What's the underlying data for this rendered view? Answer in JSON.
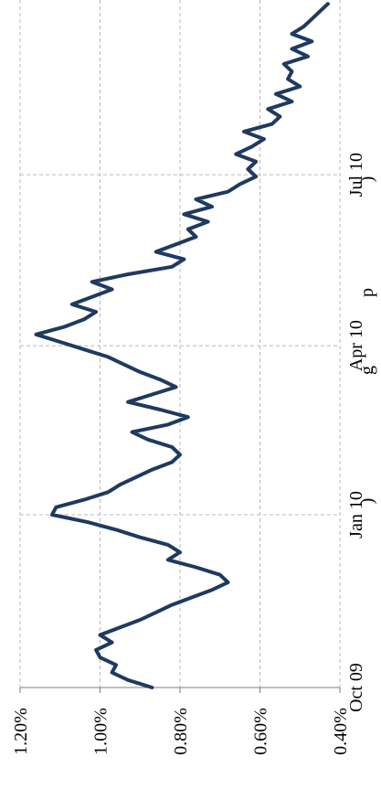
{
  "chart_data": {
    "type": "line",
    "title": "",
    "title_visible_fragments": [
      ")",
      "g",
      "p",
      ")"
    ],
    "xlabel": "",
    "ylabel": "",
    "x_ticks": [
      "Oct 09",
      "Jan 10",
      "Apr 10",
      "Jul 10"
    ],
    "y_ticks": [
      "0.40%",
      "0.60%",
      "0.80%",
      "1.00%",
      "1.20%"
    ],
    "ylim": [
      0.004,
      0.012
    ],
    "grid": true,
    "colors": {
      "line": "#1f3a5f",
      "grid": "#b8b8b8",
      "axis": "#7f7f7f"
    },
    "series": [
      {
        "x": [
          "2009-10-01",
          "2009-10-05",
          "2009-10-09",
          "2009-10-13",
          "2009-10-17",
          "2009-10-21",
          "2009-10-25",
          "2009-10-29",
          "2009-11-02",
          "2009-11-06",
          "2009-11-10",
          "2009-11-14",
          "2009-11-18",
          "2009-11-22",
          "2009-11-26",
          "2009-11-30",
          "2009-12-04",
          "2009-12-08",
          "2009-12-12",
          "2009-12-16",
          "2009-12-20",
          "2009-12-24",
          "2009-12-28",
          "2010-01-01",
          "2010-01-05",
          "2010-01-09",
          "2010-01-13",
          "2010-01-17",
          "2010-01-21",
          "2010-01-25",
          "2010-01-29",
          "2010-02-02",
          "2010-02-06",
          "2010-02-10",
          "2010-02-14",
          "2010-02-18",
          "2010-02-22",
          "2010-02-26",
          "2010-03-02",
          "2010-03-06",
          "2010-03-10",
          "2010-03-14",
          "2010-03-18",
          "2010-03-22",
          "2010-03-26",
          "2010-03-30",
          "2010-04-03",
          "2010-04-07",
          "2010-04-11",
          "2010-04-15",
          "2010-04-19",
          "2010-04-23",
          "2010-04-27",
          "2010-05-01",
          "2010-05-05",
          "2010-05-09",
          "2010-05-13",
          "2010-05-17",
          "2010-05-21",
          "2010-05-25",
          "2010-05-29",
          "2010-06-02",
          "2010-06-06",
          "2010-06-10",
          "2010-06-14",
          "2010-06-18",
          "2010-06-22",
          "2010-06-26",
          "2010-06-30",
          "2010-07-04",
          "2010-07-08",
          "2010-07-12",
          "2010-07-16",
          "2010-07-20",
          "2010-07-24",
          "2010-07-28",
          "2010-08-01",
          "2010-08-05",
          "2010-08-09",
          "2010-08-13",
          "2010-08-17",
          "2010-08-21",
          "2010-08-25",
          "2010-08-29",
          "2010-09-02",
          "2010-09-06",
          "2010-09-10",
          "2010-09-14",
          "2010-09-18",
          "2010-09-22",
          "2010-09-26",
          "2010-09-30"
        ],
        "values": [
          0.0087,
          0.0093,
          0.0097,
          0.0096,
          0.01,
          0.0101,
          0.0097,
          0.01,
          0.0095,
          0.009,
          0.0086,
          0.0082,
          0.0077,
          0.0072,
          0.0068,
          0.007,
          0.0076,
          0.0083,
          0.008,
          0.0083,
          0.009,
          0.0096,
          0.0103,
          0.0112,
          0.0111,
          0.0104,
          0.0098,
          0.0095,
          0.0091,
          0.0087,
          0.0082,
          0.008,
          0.0082,
          0.0088,
          0.0092,
          0.0083,
          0.0078,
          0.0085,
          0.0093,
          0.0087,
          0.0081,
          0.0085,
          0.009,
          0.0094,
          0.0098,
          0.0104,
          0.011,
          0.0116,
          0.0109,
          0.0104,
          0.0101,
          0.0107,
          0.0102,
          0.0097,
          0.0102,
          0.0093,
          0.0082,
          0.0079,
          0.0086,
          0.0081,
          0.0076,
          0.0078,
          0.0073,
          0.0079,
          0.0072,
          0.0076,
          0.0068,
          0.0065,
          0.0061,
          0.0063,
          0.0061,
          0.0066,
          0.0062,
          0.0059,
          0.0064,
          0.0057,
          0.0055,
          0.0058,
          0.0052,
          0.0056,
          0.005,
          0.0053,
          0.0052,
          0.0054,
          0.0048,
          0.0052,
          0.0047,
          0.0052,
          0.0049,
          0.0047,
          0.0045,
          0.0043
        ]
      }
    ]
  }
}
